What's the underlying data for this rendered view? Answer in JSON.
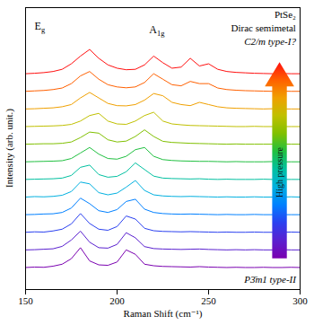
{
  "chart_data": {
    "type": "line",
    "x_label": "Raman Shift (cm⁻¹)",
    "y_label": "Intensity (arb. unit.)",
    "annotations": [
      "Eg",
      "A1g",
      "PtSe₂",
      "Dirac semimetal",
      "C2/m type-I?",
      "P3̄m1 type-II",
      "High pressure"
    ],
    "x": [
      150,
      155,
      160,
      165,
      170,
      175,
      180,
      185,
      190,
      195,
      200,
      205,
      210,
      215,
      220,
      225,
      230,
      235,
      240,
      245,
      250,
      255,
      260,
      265,
      270,
      275,
      280,
      285,
      290,
      295,
      300
    ],
    "series": [
      {
        "color": "#7a00b0",
        "values": [
          2,
          2.2,
          2.1,
          2.6,
          3.5,
          6,
          11,
          5,
          3.2,
          3,
          4.5,
          10,
          8,
          3.5,
          2.8,
          2.5,
          2.4,
          2.3,
          2.2,
          2.4,
          2.2,
          2.1,
          2,
          2.1,
          2,
          2,
          2.1,
          2,
          2,
          2.1,
          2
        ]
      },
      {
        "color": "#5a20d0",
        "values": [
          10,
          10.1,
          10.3,
          10.5,
          11.6,
          14.5,
          18.5,
          13.5,
          11,
          10.8,
          12.5,
          17.8,
          15.5,
          11.5,
          10.6,
          10.4,
          10.3,
          10.2,
          10.3,
          10.4,
          10.2,
          10.1,
          10,
          10.1,
          10,
          10.1,
          10,
          10,
          10.1,
          10,
          10
        ]
      },
      {
        "color": "#2a40f0",
        "values": [
          18,
          18.2,
          18.1,
          18.6,
          19.4,
          21.8,
          26.5,
          22,
          19.4,
          18.9,
          20.6,
          25.4,
          24,
          19.8,
          18.7,
          18.4,
          18.3,
          18.2,
          18.3,
          18.2,
          18.1,
          18,
          18.1,
          18,
          18,
          18.1,
          18,
          18,
          18,
          18.1,
          18
        ]
      },
      {
        "color": "#0080ff",
        "values": [
          26,
          26.1,
          26.3,
          26.4,
          27,
          29,
          33.5,
          31,
          27.8,
          27,
          28.3,
          32,
          33,
          28.5,
          27,
          26.5,
          26.3,
          26.2,
          26.3,
          26.2,
          26.1,
          26,
          26.1,
          26,
          26,
          26.1,
          26,
          26,
          26,
          26,
          26
        ]
      },
      {
        "color": "#00b0e0",
        "values": [
          34,
          34.2,
          34.1,
          34.3,
          34.8,
          36.5,
          40.8,
          40,
          36,
          35,
          35.8,
          38.5,
          41.5,
          37,
          35,
          34.5,
          34.3,
          34.2,
          34.3,
          34.2,
          34.1,
          34,
          34.1,
          34,
          34,
          34.1,
          34,
          34,
          34,
          34.1,
          34
        ]
      },
      {
        "color": "#00c0a0",
        "values": [
          42,
          42.1,
          42.2,
          42.3,
          42.6,
          43.8,
          47.5,
          48.5,
          44.2,
          43,
          43.4,
          45.5,
          49.5,
          46.5,
          43.5,
          42.6,
          42.4,
          42.3,
          42.2,
          42.3,
          42.1,
          42,
          42.1,
          42,
          42,
          42,
          42.1,
          42,
          42,
          42,
          42
        ]
      },
      {
        "color": "#20c040",
        "values": [
          50,
          50.1,
          50.2,
          50.3,
          50.5,
          51.5,
          54,
          56.5,
          53.5,
          51.5,
          51.2,
          52.5,
          55.5,
          56.5,
          52.5,
          51,
          50.6,
          50.4,
          50.3,
          50.2,
          50.2,
          50.1,
          50,
          50.1,
          50,
          50,
          50,
          50.1,
          50,
          50,
          50
        ]
      },
      {
        "color": "#80c000",
        "values": [
          58,
          58.1,
          58.2,
          58.2,
          58.4,
          59,
          61,
          63.5,
          63,
          60,
          59,
          59.4,
          61.5,
          64.5,
          61.5,
          59.3,
          58.8,
          58.6,
          58.4,
          58.3,
          58.2,
          58.1,
          58,
          58.1,
          58,
          58,
          58,
          58,
          58.1,
          58,
          58
        ]
      },
      {
        "color": "#c0c000",
        "values": [
          66,
          66.1,
          66.2,
          66.3,
          66.5,
          67,
          68.5,
          71,
          72,
          68.5,
          67.2,
          67,
          68.5,
          71,
          72.5,
          68.5,
          67.2,
          66.8,
          66.5,
          66.4,
          66.3,
          66.2,
          66.1,
          66,
          66,
          66.1,
          66,
          66,
          66,
          66,
          66
        ]
      },
      {
        "color": "#f0a000",
        "values": [
          74,
          74.1,
          74.3,
          74.5,
          75,
          76,
          79,
          81.5,
          79,
          76.5,
          75.5,
          75.4,
          76,
          78,
          81,
          80,
          77,
          76,
          75.5,
          77,
          76,
          75,
          74.5,
          74.3,
          74.2,
          74.1,
          74,
          74.1,
          74,
          74,
          74
        ]
      },
      {
        "color": "#ff6000",
        "values": [
          82,
          82.2,
          82.4,
          82.8,
          83.5,
          85.5,
          89,
          91,
          87.5,
          85,
          84,
          83.6,
          84,
          86,
          90,
          87.5,
          85,
          84.5,
          86.5,
          85.5,
          85.5,
          83.5,
          82.8,
          82.5,
          82.3,
          82.2,
          82.1,
          82,
          82.1,
          82,
          82
        ]
      },
      {
        "color": "#ff1010",
        "values": [
          90,
          90.2,
          90.5,
          91,
          92,
          94.5,
          98,
          101,
          97,
          94,
          92.5,
          91.8,
          92,
          94,
          98,
          95,
          92.5,
          93,
          97,
          93.5,
          94.5,
          92,
          91,
          90.6,
          90.4,
          90.2,
          90.1,
          90,
          90.1,
          90,
          90
        ]
      }
    ],
    "xlim": [
      150,
      300
    ],
    "xticks": [
      150,
      200,
      250,
      300
    ],
    "ylim": [
      -8,
      120
    ],
    "yticks": [],
    "tick_labels": "x"
  }
}
